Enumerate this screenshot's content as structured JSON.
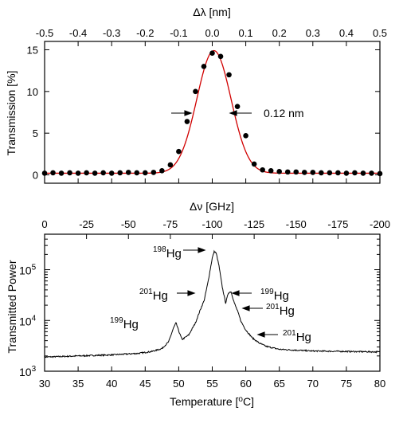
{
  "chart_data": [
    {
      "type": "scatter",
      "title": "",
      "xlabel": "",
      "ylabel": "Transmission [%]",
      "top_axis_label": "Δλ [nm]",
      "xlim": [
        -0.5,
        0.5
      ],
      "ylim": [
        -1,
        16
      ],
      "xticks": [
        "-0.5",
        "-0.4",
        "-0.3",
        "-0.2",
        "-0.1",
        "0.0",
        "0.1",
        "0.2",
        "0.3",
        "0.4",
        "0.5"
      ],
      "yticks": [
        "0",
        "5",
        "10",
        "15"
      ],
      "series": [
        {
          "kind": "points",
          "color": "#000000",
          "x": [
            -0.5,
            -0.475,
            -0.45,
            -0.425,
            -0.4,
            -0.375,
            -0.35,
            -0.325,
            -0.3,
            -0.275,
            -0.25,
            -0.225,
            -0.2,
            -0.175,
            -0.15,
            -0.125,
            -0.1,
            -0.075,
            -0.05,
            -0.025,
            0.0,
            0.025,
            0.05,
            0.075,
            0.1,
            0.125,
            0.15,
            0.175,
            0.2,
            0.225,
            0.25,
            0.275,
            0.3,
            0.325,
            0.35,
            0.375,
            0.4,
            0.425,
            0.45,
            0.475,
            0.5
          ],
          "y": [
            0.2,
            0.25,
            0.2,
            0.25,
            0.2,
            0.25,
            0.2,
            0.25,
            0.2,
            0.25,
            0.3,
            0.25,
            0.25,
            0.3,
            0.5,
            1.2,
            2.8,
            6.4,
            10.0,
            13.0,
            14.6,
            14.2,
            12.0,
            8.2,
            4.7,
            1.3,
            0.6,
            0.5,
            0.4,
            0.35,
            0.35,
            0.3,
            0.3,
            0.25,
            0.25,
            0.25,
            0.2,
            0.25,
            0.2,
            0.2,
            0.15
          ]
        },
        {
          "kind": "fit",
          "color": "#d10000",
          "peak": 14.9,
          "center": 0.005,
          "fwhm": 0.12,
          "baseline": 0.2
        }
      ],
      "annotations": [
        "0.12 nm"
      ]
    },
    {
      "type": "line",
      "title": "",
      "xlabel": "Temperature [°C]",
      "ylabel": "Transmitted Power",
      "top_axis_label": "Δν [GHz]",
      "xlim": [
        30,
        80
      ],
      "ylim_log": [
        1000,
        500000
      ],
      "yscale": "log",
      "xticks": [
        "30",
        "35",
        "40",
        "45",
        "50",
        "55",
        "60",
        "65",
        "70",
        "75",
        "80"
      ],
      "top_xticks": [
        "0",
        "-25",
        "-50",
        "-75",
        "-100",
        "-125",
        "-150",
        "-175",
        "-200"
      ],
      "yticks": [
        {
          "base": "10",
          "exp": "3"
        },
        {
          "base": "10",
          "exp": "4"
        },
        {
          "base": "10",
          "exp": "5"
        }
      ],
      "series": [
        {
          "color": "#000000",
          "x": [
            30,
            35,
            40,
            44,
            46,
            47.5,
            48.5,
            49.2,
            49.6,
            50,
            50.5,
            51.5,
            52.5,
            53.2,
            53.8,
            54.4,
            55.0,
            55.3,
            55.6,
            56.0,
            56.5,
            57.0,
            57.4,
            57.8,
            58.3,
            58.8,
            59.3,
            60.0,
            61.0,
            62,
            63,
            65,
            70,
            75,
            80
          ],
          "y": [
            1900,
            2000,
            2100,
            2250,
            2450,
            2800,
            3800,
            7000,
            9000,
            6200,
            4200,
            5200,
            9000,
            16000,
            25000,
            60000,
            170000,
            230000,
            210000,
            120000,
            45000,
            22000,
            35000,
            37000,
            22000,
            15000,
            9500,
            6500,
            4500,
            3600,
            3100,
            2700,
            2500,
            2450,
            2400
          ]
        }
      ],
      "annotations": [
        {
          "iso": "198",
          "el": "Hg"
        },
        {
          "iso": "201",
          "el": "Hg"
        },
        {
          "iso": "199",
          "el": "Hg"
        },
        {
          "iso": "199",
          "el": "Hg"
        },
        {
          "iso": "201",
          "el": "Hg"
        },
        {
          "iso": "201",
          "el": "Hg"
        }
      ],
      "xlabel_parts": {
        "pre": "Temperature [",
        "sup": "o",
        "post": "C]"
      }
    }
  ]
}
